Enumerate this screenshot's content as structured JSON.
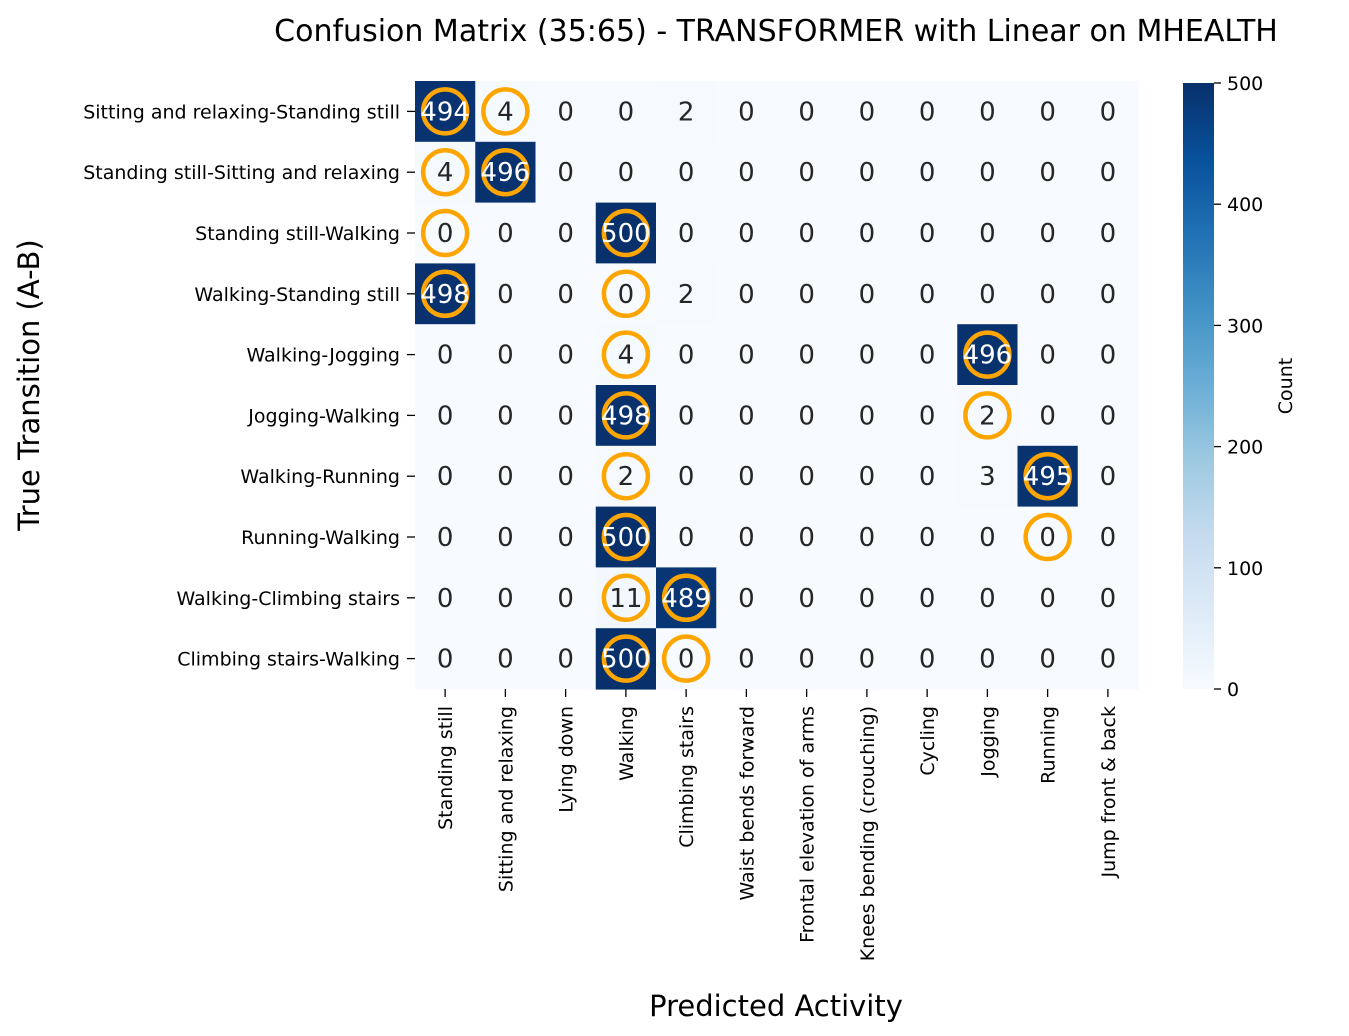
{
  "chart_data": {
    "type": "heatmap",
    "title": "Confusion Matrix (35:65) - TRANSFORMER with Linear on MHEALTH",
    "xlabel": "Predicted Activity",
    "ylabel": "True Transition (A-B)",
    "x_categories": [
      "Standing still",
      "Sitting and relaxing",
      "Lying down",
      "Walking",
      "Climbing stairs",
      "Waist bends forward",
      "Frontal elevation of arms",
      "Knees bending (crouching)",
      "Cycling",
      "Jogging",
      "Running",
      "Jump front & back"
    ],
    "y_categories": [
      "Sitting and relaxing-Standing still",
      "Standing still-Sitting and relaxing",
      "Standing still-Walking",
      "Walking-Standing still",
      "Walking-Jogging",
      "Jogging-Walking",
      "Walking-Running",
      "Running-Walking",
      "Walking-Climbing stairs",
      "Climbing stairs-Walking"
    ],
    "values": [
      [
        494,
        4,
        0,
        0,
        2,
        0,
        0,
        0,
        0,
        0,
        0,
        0
      ],
      [
        4,
        496,
        0,
        0,
        0,
        0,
        0,
        0,
        0,
        0,
        0,
        0
      ],
      [
        0,
        0,
        0,
        500,
        0,
        0,
        0,
        0,
        0,
        0,
        0,
        0
      ],
      [
        498,
        0,
        0,
        0,
        2,
        0,
        0,
        0,
        0,
        0,
        0,
        0
      ],
      [
        0,
        0,
        0,
        4,
        0,
        0,
        0,
        0,
        0,
        496,
        0,
        0
      ],
      [
        0,
        0,
        0,
        498,
        0,
        0,
        0,
        0,
        0,
        2,
        0,
        0
      ],
      [
        0,
        0,
        0,
        2,
        0,
        0,
        0,
        0,
        0,
        3,
        495,
        0
      ],
      [
        0,
        0,
        0,
        500,
        0,
        0,
        0,
        0,
        0,
        0,
        0,
        0
      ],
      [
        0,
        0,
        0,
        11,
        489,
        0,
        0,
        0,
        0,
        0,
        0,
        0
      ],
      [
        0,
        0,
        0,
        500,
        0,
        0,
        0,
        0,
        0,
        0,
        0,
        0
      ]
    ],
    "highlighted_cells": [
      [
        0,
        0
      ],
      [
        0,
        1
      ],
      [
        1,
        0
      ],
      [
        1,
        1
      ],
      [
        2,
        0
      ],
      [
        2,
        3
      ],
      [
        3,
        0
      ],
      [
        3,
        3
      ],
      [
        4,
        3
      ],
      [
        4,
        9
      ],
      [
        5,
        3
      ],
      [
        5,
        9
      ],
      [
        6,
        3
      ],
      [
        6,
        10
      ],
      [
        7,
        3
      ],
      [
        7,
        10
      ],
      [
        8,
        3
      ],
      [
        8,
        4
      ],
      [
        9,
        3
      ],
      [
        9,
        4
      ]
    ],
    "colorbar": {
      "label": "Count",
      "range": [
        0,
        500
      ],
      "ticks": [
        0,
        100,
        200,
        300,
        400,
        500
      ]
    },
    "colors": {
      "colormap": "Blues",
      "highlight_ring": "#FFA500",
      "text_dark": "#262626",
      "text_light": "#ffffff"
    }
  }
}
